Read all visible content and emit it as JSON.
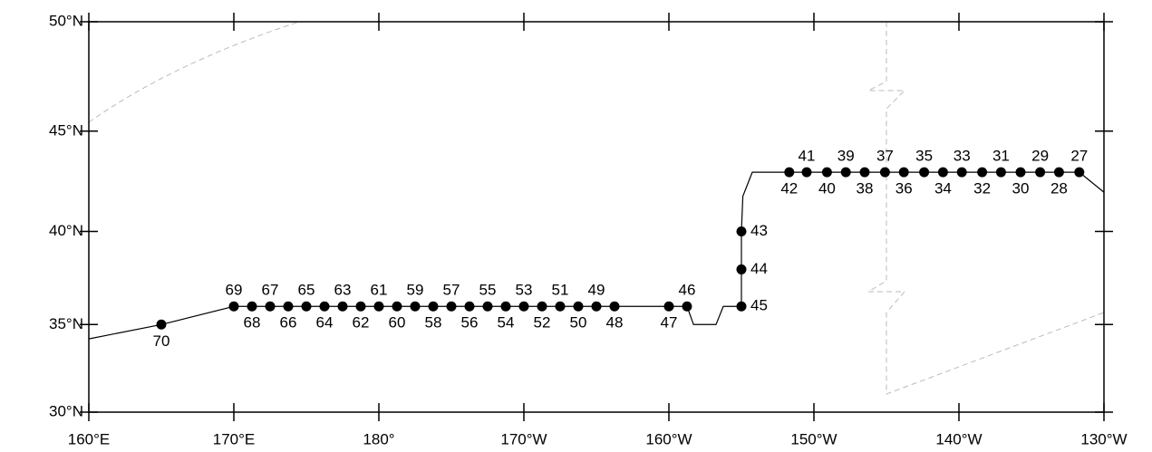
{
  "chart_data": {
    "type": "map",
    "projection": "mercator",
    "xlim": [
      160,
      230
    ],
    "ylim": [
      30,
      50
    ],
    "xticks": [
      {
        "value": 160,
        "label": "160°E"
      },
      {
        "value": 170,
        "label": "170°E"
      },
      {
        "value": 180,
        "label": "180°"
      },
      {
        "value": 190,
        "label": "170°W"
      },
      {
        "value": 200,
        "label": "160°W"
      },
      {
        "value": 210,
        "label": "150°W"
      },
      {
        "value": 220,
        "label": "140°W"
      },
      {
        "value": 230,
        "label": "130°W"
      }
    ],
    "yticks": [
      {
        "value": 30,
        "label": "30°N"
      },
      {
        "value": 35,
        "label": "35°N"
      },
      {
        "value": 40,
        "label": "40°N"
      },
      {
        "value": 45,
        "label": "45°N"
      },
      {
        "value": 50,
        "label": "50°N"
      }
    ],
    "stations": {
      "labels": [
        27,
        28,
        29,
        30,
        31,
        32,
        33,
        34,
        35,
        36,
        37,
        38,
        39,
        40,
        41,
        42,
        43,
        44,
        45,
        46,
        47,
        48,
        49,
        50,
        51,
        52,
        53,
        54,
        55,
        56,
        57,
        58,
        59,
        60,
        61,
        62,
        63,
        64,
        65,
        66,
        67,
        68,
        69,
        70
      ],
      "lon": [
        228.3,
        226.9,
        225.6,
        224.25,
        222.9,
        221.6,
        220.2,
        218.9,
        217.6,
        216.2,
        214.9,
        213.5,
        212.2,
        210.9,
        209.5,
        208.3,
        205,
        205,
        205,
        201.25,
        200,
        196.25,
        195,
        193.75,
        192.5,
        191.25,
        190,
        188.75,
        187.5,
        186.25,
        185,
        183.75,
        182.5,
        181.25,
        180,
        178.75,
        177.5,
        176.25,
        175,
        173.75,
        172.5,
        171.25,
        170,
        165
      ],
      "lat": [
        43,
        43,
        43,
        43,
        43,
        43,
        43,
        43,
        43,
        43,
        43,
        43,
        43,
        43,
        43,
        43,
        40,
        38,
        36,
        36,
        36,
        36,
        36,
        36,
        36,
        36,
        36,
        36,
        36,
        36,
        36,
        36,
        36,
        36,
        36,
        36,
        36,
        36,
        36,
        36,
        36,
        36,
        36,
        35
      ]
    },
    "track": {
      "lon": [
        160,
        165,
        170,
        196.25,
        201.25,
        201.7,
        203.25,
        203.75,
        205,
        205,
        205.1,
        205.75,
        228.3,
        230
      ],
      "lat": [
        34.2,
        35,
        36,
        36,
        36,
        35,
        35,
        36,
        36,
        40,
        41.8,
        43,
        43,
        42
      ]
    }
  }
}
